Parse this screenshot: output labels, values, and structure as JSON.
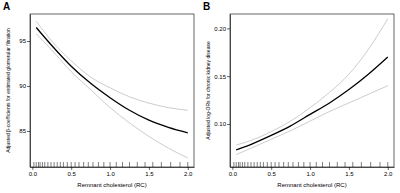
{
  "chart_data": [
    {
      "type": "line",
      "title": "A",
      "x_label": "Remnant cholesterol (RC)",
      "y_label": "Adjusted β-coefficients for estimated glomerular filtration",
      "x": [
        0.05,
        0.25,
        0.5,
        0.75,
        1.0,
        1.25,
        1.5,
        1.75,
        2.0
      ],
      "series": [
        {
          "color": "#000000",
          "values": [
            96.5,
            94.5,
            92.2,
            90.3,
            88.7,
            87.3,
            86.2,
            85.4,
            84.8
          ]
        },
        {
          "color": "#bfbfbf",
          "values": [
            95.8,
            94.0,
            91.6,
            89.6,
            87.6,
            85.9,
            84.4,
            83.1,
            82.0
          ]
        },
        {
          "color": "#bfbfbf",
          "values": [
            97.2,
            95.0,
            92.8,
            91.0,
            89.8,
            88.8,
            88.1,
            87.6,
            87.3
          ]
        }
      ],
      "rug": [
        0.02,
        0.05,
        0.08,
        0.1,
        0.13,
        0.16,
        0.2,
        0.24,
        0.28,
        0.32,
        0.36,
        0.4,
        0.45,
        0.5,
        0.55,
        0.6,
        0.66,
        0.72,
        0.78,
        0.85,
        0.92,
        1.0,
        1.08,
        1.16,
        1.25,
        1.35,
        1.45,
        1.55,
        1.66,
        1.78,
        1.9,
        2.0
      ],
      "xlim": [
        -0.03,
        2.08
      ],
      "xticks": [
        {
          "value": 0,
          "label": "0.0"
        },
        {
          "value": 0.5,
          "label": "0.5"
        },
        {
          "value": 1,
          "label": "1.0"
        },
        {
          "value": 1.5,
          "label": "1.5"
        },
        {
          "value": 2,
          "label": "2.0"
        }
      ],
      "ylim": [
        81,
        98
      ],
      "yticks": [
        85,
        90,
        95
      ]
    },
    {
      "type": "line",
      "title": "B",
      "x_label": "Remnant cholesterol (RC)",
      "y_label": "Adjusted log-ORs for chronic kidney disease",
      "x": [
        0.05,
        0.25,
        0.5,
        0.75,
        1.0,
        1.25,
        1.5,
        1.75,
        2.0
      ],
      "series": [
        {
          "color": "#000000",
          "values": [
            0.073,
            0.079,
            0.088,
            0.098,
            0.11,
            0.122,
            0.136,
            0.152,
            0.17
          ]
        },
        {
          "color": "#bfbfbf",
          "values": [
            0.068,
            0.075,
            0.084,
            0.093,
            0.103,
            0.113,
            0.122,
            0.131,
            0.14
          ]
        },
        {
          "color": "#bfbfbf",
          "values": [
            0.078,
            0.083,
            0.092,
            0.103,
            0.117,
            0.133,
            0.152,
            0.178,
            0.21
          ]
        }
      ],
      "rug": [
        0.02,
        0.05,
        0.08,
        0.1,
        0.13,
        0.16,
        0.2,
        0.24,
        0.28,
        0.32,
        0.36,
        0.4,
        0.45,
        0.5,
        0.55,
        0.6,
        0.66,
        0.72,
        0.78,
        0.85,
        0.92,
        1.0,
        1.08,
        1.16,
        1.25,
        1.35,
        1.45,
        1.55,
        1.66,
        1.78,
        1.9,
        2.0
      ],
      "xlim": [
        -0.03,
        2.08
      ],
      "xticks": [
        {
          "value": 0,
          "label": "0.0"
        },
        {
          "value": 0.5,
          "label": "0.5"
        },
        {
          "value": 1,
          "label": "1.0"
        },
        {
          "value": 1.5,
          "label": "1.5"
        },
        {
          "value": 2,
          "label": "2.0"
        }
      ],
      "ylim": [
        0.055,
        0.215
      ],
      "yticks": [
        {
          "value": 0.1,
          "label": "0.10"
        },
        {
          "value": 0.15,
          "label": "0.15"
        },
        {
          "value": 0.2,
          "label": "0.20"
        }
      ]
    }
  ]
}
